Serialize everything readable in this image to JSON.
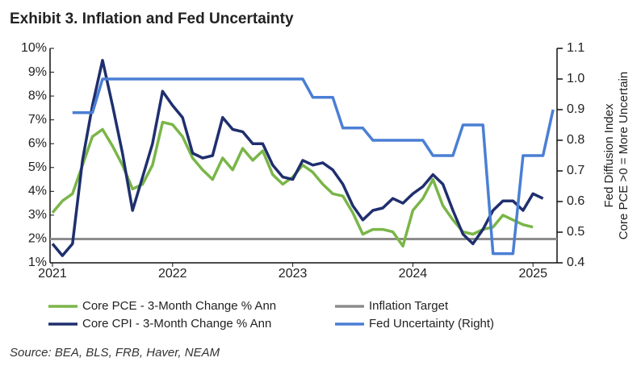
{
  "chart_data": {
    "type": "line",
    "title": "Exhibit 3. Inflation and Fed Uncertainty",
    "y2label": [
      "Fed Diffusion Index",
      "Core PCE >0 = More Uncertain"
    ],
    "source": "Source: BEA, BLS, FRB, Haver, NEAM",
    "x": [
      2021,
      2021.083,
      2021.167,
      2021.25,
      2021.333,
      2021.417,
      2021.5,
      2021.583,
      2021.667,
      2021.75,
      2021.833,
      2021.917,
      2022,
      2022.083,
      2022.167,
      2022.25,
      2022.333,
      2022.417,
      2022.5,
      2022.583,
      2022.667,
      2022.75,
      2022.833,
      2022.917,
      2023,
      2023.083,
      2023.167,
      2023.25,
      2023.333,
      2023.417,
      2023.5,
      2023.583,
      2023.667,
      2023.75,
      2023.833,
      2023.917,
      2024,
      2024.083,
      2024.167,
      2024.25,
      2024.333,
      2024.417,
      2024.5,
      2024.583,
      2024.667,
      2024.75,
      2024.833,
      2024.917,
      2025,
      2025.083,
      2025.167
    ],
    "xlim": [
      2020.98,
      2025.2
    ],
    "xticks": [
      2021,
      2022,
      2023,
      2024,
      2025
    ],
    "ylim": [
      1,
      10
    ],
    "yticks": [
      {
        "value": 10,
        "label": "10%"
      },
      {
        "value": 9,
        "label": "9%"
      },
      {
        "value": 8,
        "label": "8%"
      },
      {
        "value": 7,
        "label": "7%"
      },
      {
        "value": 6,
        "label": "6%"
      },
      {
        "value": 5,
        "label": "5%"
      },
      {
        "value": 4,
        "label": "4%"
      },
      {
        "value": 3,
        "label": "3%"
      },
      {
        "value": 2,
        "label": "2%"
      },
      {
        "value": 1,
        "label": "1%"
      }
    ],
    "y2lim": [
      0.4,
      1.1
    ],
    "y2ticks": [
      1.1,
      {
        "value": 1.0,
        "label": "1.0"
      },
      0.9,
      0.8,
      0.7,
      0.6,
      0.5,
      0.4
    ],
    "series": [
      {
        "name": "Core PCE - 3-Month Change % Ann",
        "color": "#7ab648",
        "values": [
          3.1,
          3.6,
          3.9,
          5.1,
          6.3,
          6.6,
          5.9,
          5.1,
          4.1,
          4.3,
          5.1,
          6.9,
          6.8,
          6.3,
          5.4,
          4.9,
          4.5,
          5.4,
          4.9,
          5.8,
          5.3,
          5.7,
          4.7,
          4.3,
          4.6,
          5.1,
          4.8,
          4.3,
          3.9,
          3.8,
          3.1,
          2.2,
          2.4,
          2.4,
          2.3,
          1.7,
          3.2,
          3.7,
          4.5,
          3.4,
          2.8,
          2.3,
          2.2,
          2.4,
          2.5,
          3.0,
          2.8,
          2.6,
          2.5,
          null,
          null
        ]
      },
      {
        "name": "Core CPI - 3-Month Change % Ann",
        "color": "#1f2f6e",
        "values": [
          1.8,
          1.3,
          1.8,
          5.3,
          7.6,
          9.5,
          7.6,
          5.6,
          3.2,
          4.6,
          6.0,
          8.2,
          7.6,
          7.1,
          5.6,
          5.4,
          5.5,
          7.1,
          6.6,
          6.5,
          6.0,
          6.0,
          5.1,
          4.6,
          4.5,
          5.3,
          5.1,
          5.2,
          4.9,
          4.3,
          3.4,
          2.8,
          3.2,
          3.3,
          3.7,
          3.5,
          3.9,
          4.2,
          4.7,
          4.3,
          3.2,
          2.2,
          1.8,
          2.4,
          3.2,
          3.6,
          3.6,
          3.2,
          3.9,
          3.7,
          null
        ]
      },
      {
        "name": "Fed Uncertainty (Right)",
        "color": "#4a7fd4",
        "axis": "y2",
        "values": [
          null,
          null,
          0.89,
          0.89,
          0.89,
          1.0,
          1.0,
          1.0,
          1.0,
          1.0,
          1.0,
          1.0,
          1.0,
          1.0,
          1.0,
          1.0,
          1.0,
          1.0,
          1.0,
          1.0,
          1.0,
          1.0,
          1.0,
          1.0,
          1.0,
          1.0,
          0.94,
          0.94,
          0.94,
          0.84,
          0.84,
          0.84,
          0.8,
          0.8,
          0.8,
          0.8,
          0.8,
          0.8,
          0.75,
          0.75,
          0.75,
          0.85,
          0.85,
          0.85,
          0.43,
          0.43,
          0.43,
          0.75,
          0.75,
          0.75,
          0.9
        ]
      }
    ],
    "reference_line": {
      "name": "Inflation Target",
      "value": 2,
      "color": "#8c8c8c"
    }
  }
}
